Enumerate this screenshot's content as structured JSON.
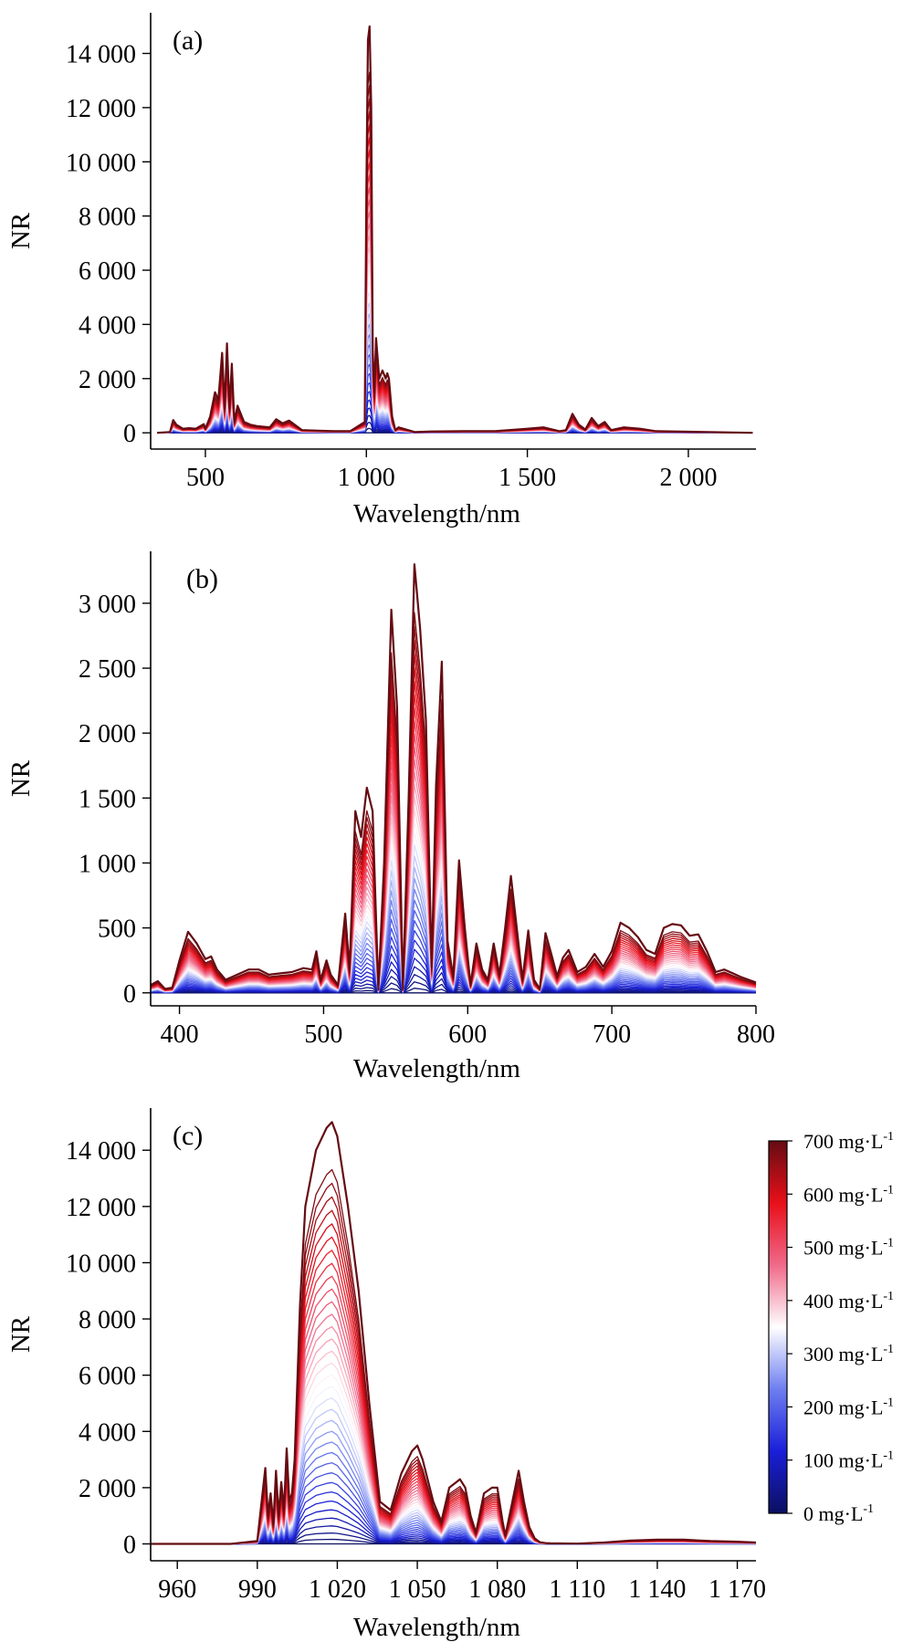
{
  "colorbar": {
    "labels": [
      {
        "value": 700,
        "text": "700 mg·L",
        "sup": "-1"
      },
      {
        "value": 600,
        "text": "600 mg·L",
        "sup": "-1"
      },
      {
        "value": 500,
        "text": "500 mg·L",
        "sup": "-1"
      },
      {
        "value": 400,
        "text": "400 mg·L",
        "sup": "-1"
      },
      {
        "value": 300,
        "text": "300 mg·L",
        "sup": "-1"
      },
      {
        "value": 200,
        "text": "200 mg·L",
        "sup": "-1"
      },
      {
        "value": 100,
        "text": "100 mg·L",
        "sup": "-1"
      },
      {
        "value": 0,
        "text": "0 mg·L",
        "sup": "-1"
      }
    ],
    "range": [
      0,
      700
    ],
    "colormap": [
      "#0b1060",
      "#1a1fd8",
      "#6e7ff0",
      "#ffffff",
      "#f06a8a",
      "#e8101a",
      "#650c12"
    ]
  },
  "chart_data": [
    {
      "panel_label": "(a)",
      "type": "line",
      "title": "",
      "xlabel": "Wavelength/nm",
      "ylabel": "NR",
      "xlim": [
        330,
        2210
      ],
      "ylim": [
        -600,
        15500
      ],
      "xticks": [
        {
          "v": 500,
          "t": "500"
        },
        {
          "v": 1000,
          "t": "1 000"
        },
        {
          "v": 1500,
          "t": "1 500"
        },
        {
          "v": 2000,
          "t": "2 000"
        }
      ],
      "yticks": [
        {
          "v": 0,
          "t": "0"
        },
        {
          "v": 2000,
          "t": "2 000"
        },
        {
          "v": 4000,
          "t": "4 000"
        },
        {
          "v": 6000,
          "t": "6 000"
        },
        {
          "v": 8000,
          "t": "8 000"
        },
        {
          "v": 10000,
          "t": "10 000"
        },
        {
          "v": 12000,
          "t": "12 000"
        },
        {
          "v": 14000,
          "t": "14 000"
        }
      ],
      "reference_spectrum_max": {
        "x": [
          350,
          390,
          400,
          410,
          430,
          450,
          470,
          495,
          500,
          515,
          530,
          540,
          552,
          560,
          567,
          575,
          582,
          590,
          600,
          620,
          640,
          660,
          700,
          720,
          740,
          760,
          800,
          850,
          900,
          950,
          995,
          1000,
          1005,
          1010,
          1015,
          1020,
          1025,
          1030,
          1040,
          1050,
          1060,
          1065,
          1070,
          1080,
          1090,
          1100,
          1150,
          1200,
          1300,
          1400,
          1500,
          1550,
          1600,
          1620,
          1640,
          1660,
          1680,
          1700,
          1720,
          1740,
          1760,
          1800,
          1850,
          1900,
          2000,
          2100,
          2200
        ],
        "y": [
          0,
          30,
          470,
          300,
          150,
          170,
          150,
          320,
          150,
          600,
          1500,
          1200,
          2950,
          900,
          3300,
          900,
          2550,
          400,
          1000,
          400,
          300,
          250,
          200,
          500,
          350,
          450,
          100,
          80,
          60,
          60,
          400,
          9000,
          14500,
          15000,
          12000,
          3000,
          1500,
          3500,
          2000,
          2300,
          2000,
          2200,
          2000,
          600,
          100,
          200,
          30,
          50,
          60,
          60,
          150,
          200,
          60,
          100,
          700,
          300,
          120,
          550,
          250,
          400,
          100,
          200,
          150,
          60,
          40,
          20,
          0
        ]
      }
    },
    {
      "panel_label": "(b)",
      "type": "line",
      "title": "",
      "xlabel": "Wavelength/nm",
      "ylabel": "NR",
      "xlim": [
        380,
        800
      ],
      "ylim": [
        -100,
        3400
      ],
      "xticks": [
        {
          "v": 400,
          "t": "400"
        },
        {
          "v": 500,
          "t": "500"
        },
        {
          "v": 600,
          "t": "600"
        },
        {
          "v": 700,
          "t": "700"
        },
        {
          "v": 800,
          "t": "800"
        }
      ],
      "yticks": [
        {
          "v": 0,
          "t": "0"
        },
        {
          "v": 500,
          "t": "500"
        },
        {
          "v": 1000,
          "t": "1 000"
        },
        {
          "v": 1500,
          "t": "1 500"
        },
        {
          "v": 2000,
          "t": "2 000"
        },
        {
          "v": 2500,
          "t": "2 500"
        },
        {
          "v": 3000,
          "t": "3 000"
        }
      ],
      "reference_spectrum_max": {
        "x": [
          380,
          385,
          390,
          395,
          400,
          406,
          412,
          418,
          422,
          426,
          432,
          440,
          448,
          455,
          462,
          470,
          478,
          486,
          492,
          495,
          498,
          502,
          505,
          510,
          515,
          518,
          522,
          526,
          530,
          534,
          538,
          542,
          547,
          551,
          555,
          559,
          563,
          567,
          571,
          575,
          578,
          582,
          586,
          590,
          594,
          598,
          602,
          606,
          610,
          614,
          618,
          622,
          626,
          630,
          634,
          638,
          642,
          646,
          650,
          654,
          658,
          662,
          666,
          670,
          676,
          682,
          688,
          694,
          700,
          706,
          712,
          718,
          724,
          730,
          736,
          742,
          748,
          754,
          760,
          766,
          772,
          778,
          784,
          790,
          800
        ],
        "y": [
          60,
          90,
          30,
          40,
          250,
          470,
          380,
          260,
          280,
          180,
          100,
          140,
          180,
          180,
          140,
          150,
          160,
          190,
          180,
          320,
          100,
          250,
          140,
          60,
          610,
          180,
          1400,
          1200,
          1580,
          1400,
          30,
          1000,
          2950,
          2200,
          30,
          1500,
          3300,
          2800,
          2100,
          200,
          1600,
          2550,
          400,
          120,
          1020,
          500,
          60,
          380,
          180,
          100,
          380,
          140,
          500,
          900,
          500,
          100,
          480,
          100,
          30,
          460,
          300,
          130,
          270,
          330,
          160,
          200,
          300,
          200,
          320,
          540,
          500,
          430,
          330,
          300,
          500,
          530,
          520,
          440,
          450,
          320,
          160,
          180,
          150,
          120,
          80
        ]
      }
    },
    {
      "panel_label": "(c)",
      "type": "line",
      "title": "",
      "xlabel": "Wavelength/nm",
      "ylabel": "NR",
      "xlim": [
        950,
        1177
      ],
      "ylim": [
        -600,
        15500
      ],
      "xticks": [
        {
          "v": 960,
          "t": "960"
        },
        {
          "v": 990,
          "t": "990"
        },
        {
          "v": 1020,
          "t": "1 020"
        },
        {
          "v": 1050,
          "t": "1 050"
        },
        {
          "v": 1080,
          "t": "1 080"
        },
        {
          "v": 1110,
          "t": "1 110"
        },
        {
          "v": 1140,
          "t": "1 140"
        },
        {
          "v": 1170,
          "t": "1 170"
        }
      ],
      "yticks": [
        {
          "v": 0,
          "t": "0"
        },
        {
          "v": 2000,
          "t": "2 000"
        },
        {
          "v": 4000,
          "t": "4 000"
        },
        {
          "v": 6000,
          "t": "6 000"
        },
        {
          "v": 8000,
          "t": "8 000"
        },
        {
          "v": 10000,
          "t": "10 000"
        },
        {
          "v": 12000,
          "t": "12 000"
        },
        {
          "v": 14000,
          "t": "14 000"
        }
      ],
      "reference_spectrum_max": {
        "x": [
          950,
          980,
          990,
          993,
          994,
          995,
          996,
          997,
          998,
          999,
          1000,
          1001,
          1002,
          1003,
          1004,
          1006,
          1008,
          1012,
          1016,
          1018,
          1020,
          1024,
          1028,
          1032,
          1036,
          1040,
          1044,
          1048,
          1050,
          1052,
          1056,
          1059,
          1062,
          1066,
          1068,
          1070,
          1072,
          1075,
          1078,
          1080,
          1082,
          1083,
          1085,
          1088,
          1090,
          1092,
          1094,
          1096,
          1098,
          1100,
          1110,
          1120,
          1130,
          1140,
          1150,
          1160,
          1170,
          1177
        ],
        "y": [
          0,
          0,
          100,
          2700,
          1000,
          1800,
          700,
          2600,
          1000,
          2200,
          1200,
          3400,
          1500,
          1800,
          3000,
          8500,
          12000,
          14000,
          14800,
          15000,
          14500,
          12000,
          9000,
          5000,
          1500,
          1200,
          2500,
          3300,
          3500,
          3000,
          1500,
          800,
          2000,
          2300,
          2000,
          1000,
          400,
          1800,
          2000,
          2000,
          800,
          300,
          1200,
          2600,
          1500,
          600,
          200,
          60,
          30,
          20,
          10,
          50,
          120,
          150,
          150,
          100,
          80,
          50
        ]
      }
    }
  ]
}
